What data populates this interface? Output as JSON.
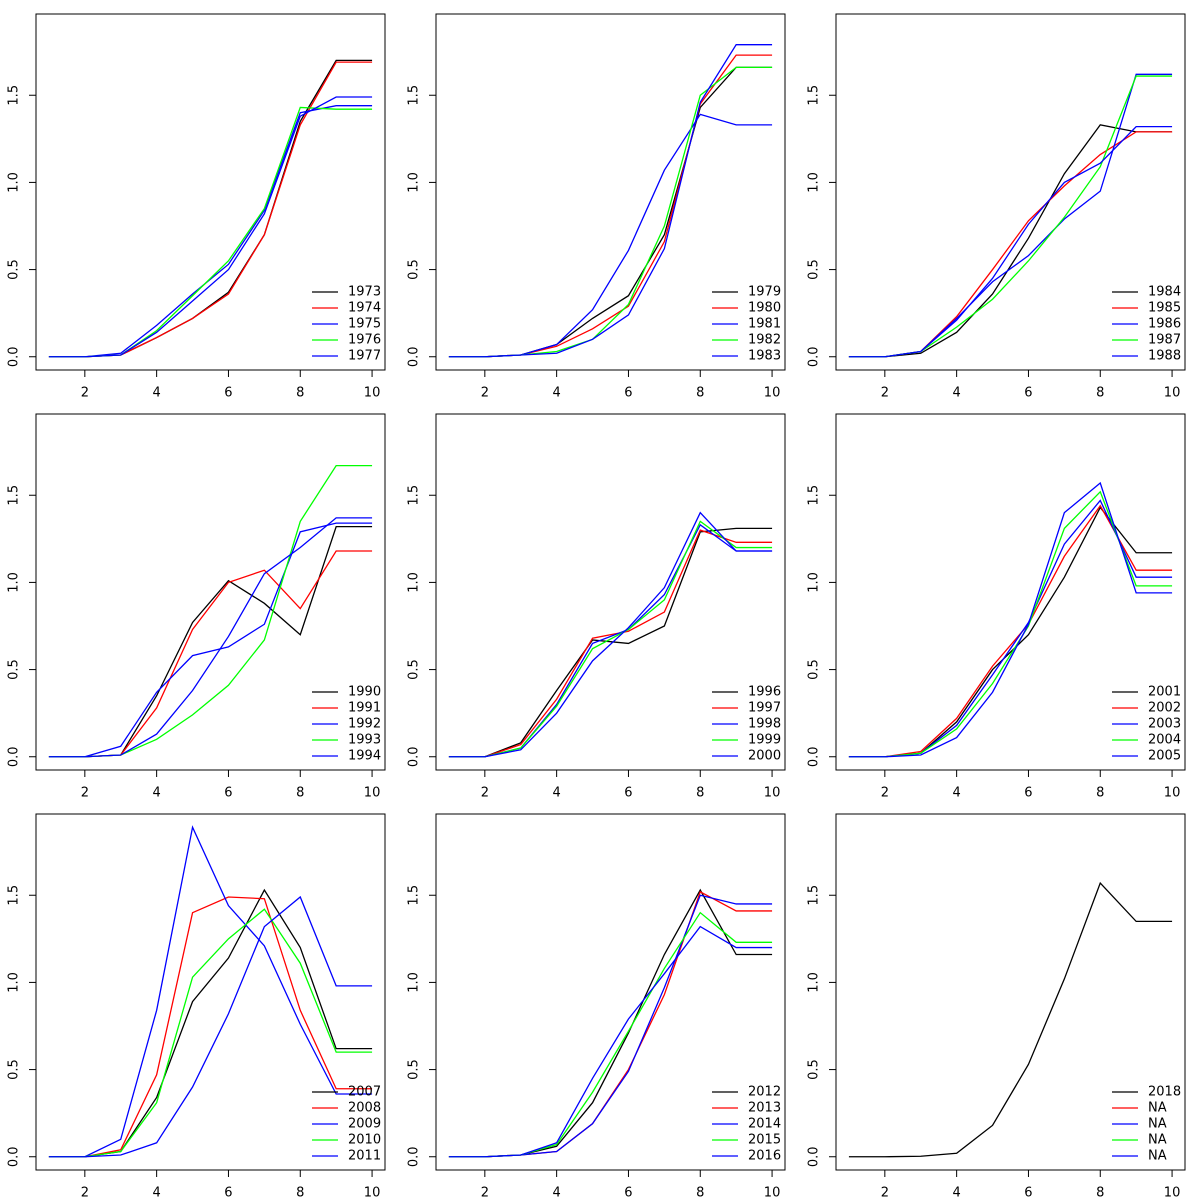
{
  "chart_data": [
    {
      "type": "line",
      "x": [
        1,
        2,
        3,
        4,
        5,
        6,
        7,
        8,
        9,
        10
      ],
      "xlim": [
        0.64,
        10.36
      ],
      "ylim": [
        -0.076,
        1.966
      ],
      "xticks": [
        2,
        4,
        6,
        8,
        10
      ],
      "yticks": [
        {
          "value": 0,
          "label": "0.0"
        },
        0.5,
        {
          "value": 1,
          "label": "1.0"
        },
        1.5
      ],
      "legend": "bottom-right",
      "series": [
        {
          "name": "1973",
          "color": "#000000",
          "values": [
            0,
            0,
            0.01,
            0.11,
            0.22,
            0.37,
            0.7,
            1.35,
            1.7,
            1.7
          ]
        },
        {
          "name": "1974",
          "color": "#ff0000",
          "values": [
            0,
            0,
            0.01,
            0.11,
            0.22,
            0.36,
            0.7,
            1.33,
            1.69,
            1.69
          ]
        },
        {
          "name": "1975",
          "color": "#0000ff",
          "values": [
            0,
            0,
            0.02,
            0.18,
            0.36,
            0.53,
            0.84,
            1.4,
            1.44,
            1.44
          ]
        },
        {
          "name": "1976",
          "color": "#00ff00",
          "values": [
            0,
            0,
            0.01,
            0.15,
            0.35,
            0.55,
            0.85,
            1.43,
            1.42,
            1.42
          ]
        },
        {
          "name": "1977",
          "color": "#0000ff",
          "values": [
            0,
            0,
            0.01,
            0.14,
            0.32,
            0.5,
            0.82,
            1.38,
            1.49,
            1.49
          ]
        }
      ]
    },
    {
      "type": "line",
      "x": [
        1,
        2,
        3,
        4,
        5,
        6,
        7,
        8,
        9,
        10
      ],
      "xlim": [
        0.64,
        10.36
      ],
      "ylim": [
        -0.076,
        1.966
      ],
      "xticks": [
        2,
        4,
        6,
        8,
        10
      ],
      "yticks": [
        {
          "value": 0,
          "label": "0.0"
        },
        0.5,
        {
          "value": 1,
          "label": "1.0"
        },
        1.5
      ],
      "legend": "bottom-right",
      "series": [
        {
          "name": "1979",
          "color": "#000000",
          "values": [
            0,
            0,
            0.01,
            0.07,
            0.22,
            0.35,
            0.7,
            1.43,
            1.66,
            1.66
          ]
        },
        {
          "name": "1980",
          "color": "#ff0000",
          "values": [
            0,
            0,
            0.01,
            0.06,
            0.16,
            0.29,
            0.66,
            1.45,
            1.73,
            1.73
          ]
        },
        {
          "name": "1981",
          "color": "#0000ff",
          "values": [
            0,
            0,
            0.01,
            0.07,
            0.27,
            0.61,
            1.07,
            1.39,
            1.33,
            1.33
          ]
        },
        {
          "name": "1982",
          "color": "#00ff00",
          "values": [
            0,
            0,
            0.01,
            0.03,
            0.1,
            0.3,
            0.75,
            1.5,
            1.66,
            1.66
          ]
        },
        {
          "name": "1983",
          "color": "#0000ff",
          "values": [
            0,
            0,
            0.01,
            0.02,
            0.1,
            0.24,
            0.62,
            1.46,
            1.79,
            1.79
          ]
        }
      ]
    },
    {
      "type": "line",
      "x": [
        1,
        2,
        3,
        4,
        5,
        6,
        7,
        8,
        9,
        10
      ],
      "xlim": [
        0.64,
        10.36
      ],
      "ylim": [
        -0.076,
        1.966
      ],
      "xticks": [
        2,
        4,
        6,
        8,
        10
      ],
      "yticks": [
        {
          "value": 0,
          "label": "0.0"
        },
        0.5,
        {
          "value": 1,
          "label": "1.0"
        },
        1.5
      ],
      "legend": "bottom-right",
      "series": [
        {
          "name": "1984",
          "color": "#000000",
          "values": [
            0,
            0,
            0.02,
            0.14,
            0.36,
            0.68,
            1.05,
            1.33,
            1.29,
            1.29
          ]
        },
        {
          "name": "1985",
          "color": "#ff0000",
          "values": [
            0,
            0,
            0.03,
            0.23,
            0.5,
            0.78,
            0.98,
            1.16,
            1.29,
            1.29
          ]
        },
        {
          "name": "1986",
          "color": "#0000ff",
          "values": [
            0,
            0,
            0.03,
            0.22,
            0.43,
            0.58,
            0.79,
            0.95,
            1.62,
            1.62
          ]
        },
        {
          "name": "1987",
          "color": "#00ff00",
          "values": [
            0,
            0,
            0.03,
            0.17,
            0.33,
            0.55,
            0.8,
            1.09,
            1.61,
            1.61
          ]
        },
        {
          "name": "1988",
          "color": "#0000ff",
          "values": [
            0,
            0,
            0.03,
            0.21,
            0.45,
            0.76,
            1.0,
            1.11,
            1.32,
            1.32
          ]
        }
      ]
    },
    {
      "type": "line",
      "x": [
        1,
        2,
        3,
        4,
        5,
        6,
        7,
        8,
        9,
        10
      ],
      "xlim": [
        0.64,
        10.36
      ],
      "ylim": [
        -0.076,
        1.966
      ],
      "xticks": [
        2,
        4,
        6,
        8,
        10
      ],
      "yticks": [
        {
          "value": 0,
          "label": "0.0"
        },
        0.5,
        {
          "value": 1,
          "label": "1.0"
        },
        1.5
      ],
      "legend": "bottom-right",
      "series": [
        {
          "name": "1990",
          "color": "#000000",
          "values": [
            0,
            0,
            0.01,
            0.35,
            0.77,
            1.01,
            0.88,
            0.7,
            1.32,
            1.32
          ]
        },
        {
          "name": "1991",
          "color": "#ff0000",
          "values": [
            0,
            0,
            0.01,
            0.28,
            0.73,
            1.0,
            1.07,
            0.85,
            1.18,
            1.18
          ]
        },
        {
          "name": "1992",
          "color": "#0000ff",
          "values": [
            0,
            0,
            0.06,
            0.37,
            0.58,
            0.63,
            0.76,
            1.29,
            1.34,
            1.34
          ]
        },
        {
          "name": "1993",
          "color": "#00ff00",
          "values": [
            0,
            0,
            0.01,
            0.1,
            0.24,
            0.41,
            0.67,
            1.35,
            1.67,
            1.67
          ]
        },
        {
          "name": "1994",
          "color": "#0000ff",
          "values": [
            0,
            0,
            0.01,
            0.13,
            0.38,
            0.69,
            1.05,
            1.2,
            1.37,
            1.37
          ]
        }
      ]
    },
    {
      "type": "line",
      "x": [
        1,
        2,
        3,
        4,
        5,
        6,
        7,
        8,
        9,
        10
      ],
      "xlim": [
        0.64,
        10.36
      ],
      "ylim": [
        -0.076,
        1.966
      ],
      "xticks": [
        2,
        4,
        6,
        8,
        10
      ],
      "yticks": [
        {
          "value": 0,
          "label": "0.0"
        },
        0.5,
        {
          "value": 1,
          "label": "1.0"
        },
        1.5
      ],
      "legend": "bottom-right",
      "series": [
        {
          "name": "1996",
          "color": "#000000",
          "values": [
            0,
            0,
            0.08,
            0.38,
            0.67,
            0.65,
            0.75,
            1.29,
            1.31,
            1.31
          ]
        },
        {
          "name": "1997",
          "color": "#ff0000",
          "values": [
            0,
            0,
            0.07,
            0.33,
            0.68,
            0.72,
            0.83,
            1.3,
            1.23,
            1.23
          ]
        },
        {
          "name": "1998",
          "color": "#0000ff",
          "values": [
            0,
            0,
            0.05,
            0.3,
            0.65,
            0.73,
            0.93,
            1.33,
            1.18,
            1.18
          ]
        },
        {
          "name": "1999",
          "color": "#00ff00",
          "values": [
            0,
            0,
            0.05,
            0.29,
            0.62,
            0.73,
            0.9,
            1.35,
            1.2,
            1.2
          ]
        },
        {
          "name": "2000",
          "color": "#0000ff",
          "values": [
            0,
            0,
            0.04,
            0.25,
            0.55,
            0.74,
            0.97,
            1.4,
            1.18,
            1.18
          ]
        }
      ]
    },
    {
      "type": "line",
      "x": [
        1,
        2,
        3,
        4,
        5,
        6,
        7,
        8,
        9,
        10
      ],
      "xlim": [
        0.64,
        10.36
      ],
      "ylim": [
        -0.076,
        1.966
      ],
      "xticks": [
        2,
        4,
        6,
        8,
        10
      ],
      "yticks": [
        {
          "value": 0,
          "label": "0.0"
        },
        0.5,
        {
          "value": 1,
          "label": "1.0"
        },
        1.5
      ],
      "legend": "bottom-right",
      "series": [
        {
          "name": "2001",
          "color": "#000000",
          "values": [
            0,
            0,
            0.02,
            0.2,
            0.5,
            0.7,
            1.03,
            1.43,
            1.17,
            1.17
          ]
        },
        {
          "name": "2002",
          "color": "#ff0000",
          "values": [
            0,
            0,
            0.03,
            0.22,
            0.52,
            0.76,
            1.15,
            1.44,
            1.07,
            1.07
          ]
        },
        {
          "name": "2003",
          "color": "#0000ff",
          "values": [
            0,
            0,
            0.02,
            0.18,
            0.47,
            0.77,
            1.22,
            1.47,
            1.03,
            1.03
          ]
        },
        {
          "name": "2004",
          "color": "#00ff00",
          "values": [
            0,
            0,
            0.02,
            0.16,
            0.42,
            0.75,
            1.31,
            1.52,
            0.98,
            0.98
          ]
        },
        {
          "name": "2005",
          "color": "#0000ff",
          "values": [
            0,
            0,
            0.01,
            0.11,
            0.37,
            0.76,
            1.4,
            1.57,
            0.94,
            0.94
          ]
        }
      ]
    },
    {
      "type": "line",
      "x": [
        1,
        2,
        3,
        4,
        5,
        6,
        7,
        8,
        9,
        10
      ],
      "xlim": [
        0.64,
        10.36
      ],
      "ylim": [
        -0.076,
        1.966
      ],
      "xticks": [
        2,
        4,
        6,
        8,
        10
      ],
      "yticks": [
        {
          "value": 0,
          "label": "0.0"
        },
        0.5,
        {
          "value": 1,
          "label": "1.0"
        },
        1.5
      ],
      "legend": "bottom-right",
      "series": [
        {
          "name": "2007",
          "color": "#000000",
          "values": [
            0,
            0,
            0.03,
            0.34,
            0.89,
            1.14,
            1.53,
            1.2,
            0.62,
            0.62
          ]
        },
        {
          "name": "2008",
          "color": "#ff0000",
          "values": [
            0,
            0,
            0.04,
            0.47,
            1.4,
            1.49,
            1.48,
            0.84,
            0.39,
            0.39
          ]
        },
        {
          "name": "2009",
          "color": "#0000ff",
          "values": [
            0,
            0,
            0.1,
            0.84,
            1.89,
            1.44,
            1.21,
            0.76,
            0.36,
            0.36
          ]
        },
        {
          "name": "2010",
          "color": "#00ff00",
          "values": [
            0,
            0,
            0.03,
            0.31,
            1.03,
            1.25,
            1.42,
            1.11,
            0.6,
            0.6
          ]
        },
        {
          "name": "2011",
          "color": "#0000ff",
          "values": [
            0,
            0,
            0.01,
            0.08,
            0.4,
            0.82,
            1.32,
            1.49,
            0.98,
            0.98
          ]
        }
      ]
    },
    {
      "type": "line",
      "x": [
        1,
        2,
        3,
        4,
        5,
        6,
        7,
        8,
        9,
        10
      ],
      "xlim": [
        0.64,
        10.36
      ],
      "ylim": [
        -0.076,
        1.966
      ],
      "xticks": [
        2,
        4,
        6,
        8,
        10
      ],
      "yticks": [
        {
          "value": 0,
          "label": "0.0"
        },
        0.5,
        {
          "value": 1,
          "label": "1.0"
        },
        1.5
      ],
      "legend": "bottom-right",
      "series": [
        {
          "name": "2012",
          "color": "#000000",
          "values": [
            0,
            0,
            0.01,
            0.06,
            0.31,
            0.71,
            1.16,
            1.53,
            1.16,
            1.16
          ]
        },
        {
          "name": "2013",
          "color": "#ff0000",
          "values": [
            0,
            0,
            0.01,
            0.03,
            0.19,
            0.5,
            0.93,
            1.52,
            1.41,
            1.41
          ]
        },
        {
          "name": "2014",
          "color": "#0000ff",
          "values": [
            0,
            0,
            0.01,
            0.03,
            0.19,
            0.49,
            0.97,
            1.5,
            1.45,
            1.45
          ]
        },
        {
          "name": "2015",
          "color": "#00ff00",
          "values": [
            0,
            0,
            0.01,
            0.07,
            0.37,
            0.72,
            1.08,
            1.4,
            1.23,
            1.23
          ]
        },
        {
          "name": "2016",
          "color": "#0000ff",
          "values": [
            0,
            0,
            0.01,
            0.08,
            0.45,
            0.79,
            1.05,
            1.32,
            1.2,
            1.2
          ]
        }
      ]
    },
    {
      "type": "line",
      "x": [
        1,
        2,
        3,
        4,
        5,
        6,
        7,
        8,
        9,
        10
      ],
      "xlim": [
        0.64,
        10.36
      ],
      "ylim": [
        -0.076,
        1.966
      ],
      "xticks": [
        2,
        4,
        6,
        8,
        10
      ],
      "yticks": [
        {
          "value": 0,
          "label": "0.0"
        },
        0.5,
        {
          "value": 1,
          "label": "1.0"
        },
        1.5
      ],
      "legend": "bottom-right",
      "series": [
        {
          "name": "2018",
          "color": "#000000",
          "values": [
            0,
            0,
            0.003,
            0.02,
            0.18,
            0.53,
            1.02,
            1.57,
            1.35,
            1.35
          ]
        },
        {
          "name": "NA",
          "color": "#ff0000",
          "values": [
            null,
            null,
            null,
            null,
            null,
            null,
            null,
            null,
            null,
            null
          ]
        },
        {
          "name": "NA",
          "color": "#0000ff",
          "values": [
            null,
            null,
            null,
            null,
            null,
            null,
            null,
            null,
            null,
            null
          ]
        },
        {
          "name": "NA",
          "color": "#00ff00",
          "values": [
            null,
            null,
            null,
            null,
            null,
            null,
            null,
            null,
            null,
            null
          ]
        },
        {
          "name": "NA",
          "color": "#0000ff",
          "values": [
            null,
            null,
            null,
            null,
            null,
            null,
            null,
            null,
            null,
            null
          ]
        }
      ]
    }
  ]
}
